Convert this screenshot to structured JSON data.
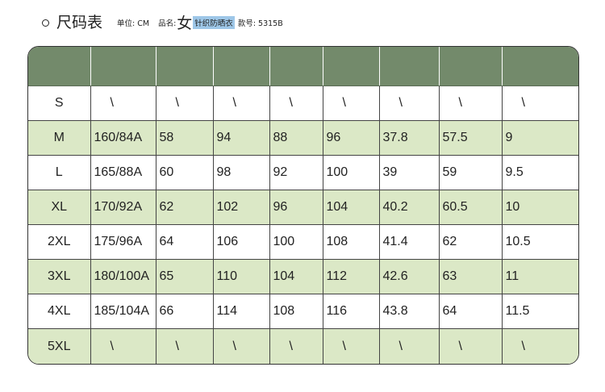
{
  "header": {
    "title": "尺码表",
    "unit": "单位: CM",
    "product_label": "品名:",
    "gender": "女",
    "product_name": "针织防晒衣",
    "style_number": "款号: 5315B"
  },
  "colors": {
    "header_row": "#738a6b",
    "alternate_row": "#dbe8c6",
    "border": "#333333"
  },
  "table": {
    "columns": 9,
    "rows": [
      {
        "shade": "white",
        "cells": [
          "S",
          "\\",
          "\\",
          "\\",
          "\\",
          "\\",
          "\\",
          "\\",
          "\\"
        ]
      },
      {
        "shade": "green",
        "cells": [
          "M",
          "160/84A",
          "58",
          "94",
          "88",
          "96",
          "37.8",
          "57.5",
          "9"
        ]
      },
      {
        "shade": "white",
        "cells": [
          "L",
          "165/88A",
          "60",
          "98",
          "92",
          "100",
          "39",
          "59",
          "9.5"
        ]
      },
      {
        "shade": "green",
        "cells": [
          "XL",
          "170/92A",
          "62",
          "102",
          "96",
          "104",
          "40.2",
          "60.5",
          "10"
        ]
      },
      {
        "shade": "white",
        "cells": [
          "2XL",
          "175/96A",
          "64",
          "106",
          "100",
          "108",
          "41.4",
          "62",
          "10.5"
        ]
      },
      {
        "shade": "green",
        "cells": [
          "3XL",
          "180/100A",
          "65",
          "110",
          "104",
          "112",
          "42.6",
          "63",
          "11"
        ]
      },
      {
        "shade": "white",
        "cells": [
          "4XL",
          "185/104A",
          "66",
          "114",
          "108",
          "116",
          "43.8",
          "64",
          "11.5"
        ]
      },
      {
        "shade": "green",
        "cells": [
          "5XL",
          "\\",
          "\\",
          "\\",
          "\\",
          "\\",
          "\\",
          "\\",
          "\\"
        ]
      }
    ]
  }
}
